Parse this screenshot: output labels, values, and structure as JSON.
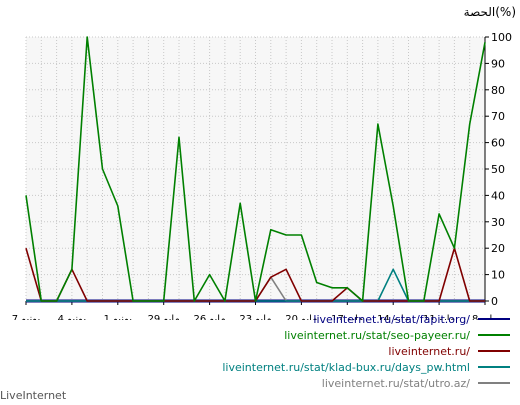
{
  "chart_data": {
    "type": "line",
    "ylabel": "الحصة(%)",
    "ylim": [
      0,
      100
    ],
    "yticks": [
      0,
      10,
      20,
      30,
      40,
      50,
      60,
      70,
      80,
      90,
      100
    ],
    "grid": true,
    "legend_position": "bottom-right",
    "x_tick_labels": [
      "8 مايو",
      "11 مايو",
      "14 مايو",
      "17 مايو",
      "20 مايو",
      "23 مايو",
      "26 مايو",
      "29 مايو",
      "1 يونيو",
      "4 يونيو",
      "7 يونيو"
    ],
    "x": [
      "7 يونيو",
      "6 يونيو",
      "5 يونيو",
      "4 يونيو",
      "3 يونيو",
      "2 يونيو",
      "1 يونيو",
      "31 مايو",
      "30 مايو",
      "29 مايو",
      "28 مايو",
      "27 مايو",
      "26 مايو",
      "25 مايو",
      "24 مايو",
      "23 مايو",
      "22 مايو",
      "21 مايو",
      "20 مايو",
      "19 مايو",
      "18 مايو",
      "17 مايو",
      "16 مايو",
      "15 مايو",
      "14 مايو",
      "13 مايو",
      "12 مايو",
      "11 مايو",
      "10 مايو",
      "9 مايو",
      "8 مايو"
    ],
    "series": [
      {
        "name": "liveinternet.ru/stat/fapit.org/",
        "color": "#000080",
        "values": [
          0,
          0,
          0,
          0,
          0,
          0,
          0,
          0,
          0,
          0,
          0,
          0,
          0,
          0,
          0,
          0,
          0,
          0,
          0,
          0,
          0,
          0,
          0,
          0,
          0,
          0,
          0,
          0,
          0,
          0,
          0
        ]
      },
      {
        "name": "liveinternet.ru/stat/seo-payeer.ru/",
        "color": "#008000",
        "values": [
          40,
          0,
          0,
          12,
          100,
          50,
          36,
          0,
          0,
          0,
          62,
          0,
          10,
          0,
          37,
          0,
          27,
          25,
          25,
          7,
          5,
          5,
          0,
          67,
          36,
          0,
          0,
          33,
          20,
          67,
          98
        ]
      },
      {
        "name": "liveinternet.ru/",
        "color": "#800000",
        "values": [
          20,
          0,
          0,
          12,
          0,
          0,
          0,
          0,
          0,
          0,
          0,
          0,
          0,
          0,
          0,
          0,
          9,
          12,
          0,
          0,
          0,
          5,
          0,
          0,
          0,
          0,
          0,
          0,
          20,
          0,
          0
        ]
      },
      {
        "name": "liveinternet.ru/stat/klad-bux.ru/days_pw.html",
        "color": "#008080",
        "values": [
          0,
          0,
          0,
          0,
          0,
          0,
          0,
          0,
          0,
          0,
          0,
          0,
          0,
          0,
          0,
          0,
          0,
          0,
          0,
          0,
          0,
          0,
          0,
          0,
          12,
          0,
          0,
          0,
          0,
          0,
          0
        ]
      },
      {
        "name": "liveinternet.ru/stat/utro.az/",
        "color": "#808080",
        "values": [
          0,
          0,
          0,
          0,
          0,
          0,
          0,
          0,
          0,
          0,
          0,
          0,
          0,
          0,
          0,
          0,
          9,
          0,
          0,
          0,
          0,
          0,
          0,
          0,
          0,
          0,
          0,
          0,
          0,
          0,
          0
        ]
      }
    ]
  },
  "footer": {
    "text": "LiveInternet"
  }
}
